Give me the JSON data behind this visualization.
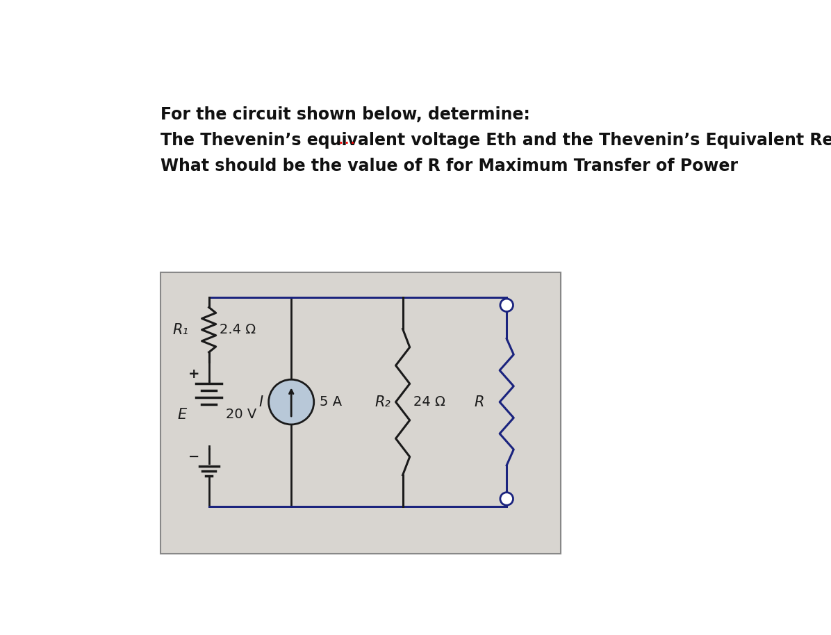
{
  "bg_color": "#ffffff",
  "circuit_bg": "#d8d5d0",
  "circuit_border": "#888888",
  "wire_color": "#1a237e",
  "component_color": "#1a1a1a",
  "text_color": "#111111",
  "line1": "For the circuit shown below, determine:",
  "line2_pre": "The Thevenin’s equivalent voltage ",
  "line2_eth": "Eth",
  "line2_post": " and the Thevenin’s Equivalent Resistance across R.",
  "line3": "What should be the value of R for Maximum Transfer of Power",
  "font_size_text": 17,
  "R1_label": "R₁",
  "R1_value": "2.4 Ω",
  "E_label": "E",
  "E_value": "20 V",
  "plus_label": "+",
  "minus_label": "−",
  "I_label": "I",
  "I_value": "5 A",
  "R2_label": "R₂",
  "R2_value": "24 Ω",
  "R_label": "R",
  "cs_facecolor": "#b8c8d8",
  "open_circle_color": "#1a237e"
}
